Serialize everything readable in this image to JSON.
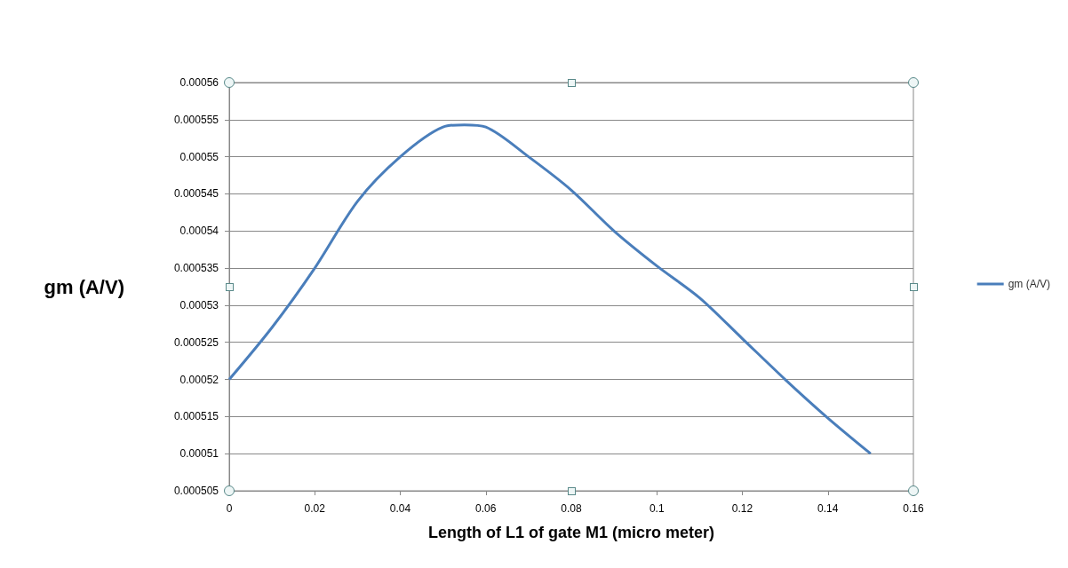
{
  "chart_data": {
    "type": "line",
    "xlabel": "Length of L1 of gate M1 (micro meter)",
    "ylabel": "gm (A/V)",
    "x": [
      0,
      0.01,
      0.02,
      0.03,
      0.04,
      0.05,
      0.055,
      0.06,
      0.07,
      0.08,
      0.09,
      0.1,
      0.11,
      0.12,
      0.13,
      0.14,
      0.15
    ],
    "series": [
      {
        "name": "gm (A/V)",
        "color": "#4a7ebb",
        "values": [
          0.00052,
          0.000527,
          0.000535,
          0.000544,
          0.00055,
          0.000554,
          0.0005543,
          0.000554,
          0.00055,
          0.0005455,
          0.00054,
          0.0005353,
          0.000531,
          0.0005255,
          0.00052,
          0.0005148,
          0.00051
        ]
      }
    ],
    "xlim": [
      0,
      0.16
    ],
    "xticks": [
      0,
      0.02,
      0.04,
      0.06,
      0.08,
      0.1,
      0.12,
      0.14,
      0.16
    ],
    "ylim": [
      0.000505,
      0.00056
    ],
    "yticks": [
      0.000505,
      0.00051,
      0.000515,
      0.00052,
      0.000525,
      0.00053,
      0.000535,
      0.00054,
      0.000545,
      0.00055,
      0.000555,
      0.00056
    ],
    "grid": "y",
    "legend": "right",
    "marker": "none",
    "line_style": "solid"
  }
}
